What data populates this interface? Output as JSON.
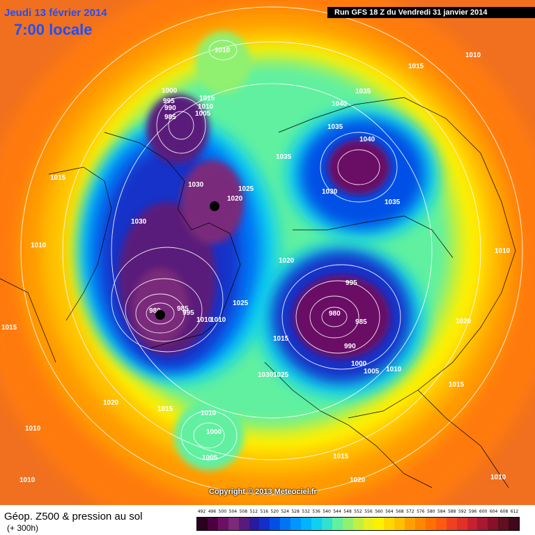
{
  "header": {
    "date": "Jeudi 13 février 2014",
    "time": "7:00 locale",
    "run": "Run GFS 18 Z du Vendredi 31 janvier 2014"
  },
  "copyright": "Copyright © 2013 Meteociel.fr",
  "legend": {
    "title": "Géop. Z500 & pression au sol",
    "subtitle": "(+ 300h)",
    "scale": [
      "492",
      "496",
      "500",
      "504",
      "508",
      "512",
      "516",
      "520",
      "524",
      "528",
      "532",
      "536",
      "540",
      "544",
      "548",
      "552",
      "556",
      "560",
      "564",
      "568",
      "572",
      "576",
      "580",
      "584",
      "588",
      "592",
      "596",
      "600",
      "604",
      "608",
      "612"
    ],
    "colors": [
      "#2a0020",
      "#4b0040",
      "#6b1065",
      "#7a2a7a",
      "#5a1a7a",
      "#2a1aa0",
      "#1230c8",
      "#0050e6",
      "#0074f5",
      "#0096ff",
      "#00b4ff",
      "#10d0f0",
      "#30e0d0",
      "#60f0a0",
      "#90f070",
      "#c0f040",
      "#e8f020",
      "#fff000",
      "#ffd800",
      "#ffc000",
      "#ffa000",
      "#ff8800",
      "#ff7000",
      "#ff5a10",
      "#f04020",
      "#e03028",
      "#c82030",
      "#a81830",
      "#881028",
      "#601020",
      "#400818"
    ]
  },
  "isobars": [
    "1010",
    "1015",
    "1000",
    "995",
    "990",
    "985",
    "1015",
    "1010",
    "1005",
    "1015",
    "1030",
    "1025",
    "1020",
    "1030",
    "1010",
    "980",
    "985",
    "995",
    "1010",
    "1010",
    "1025",
    "1030",
    "1025",
    "1015",
    "1020",
    "1010",
    "1000",
    "1005",
    "1010",
    "1010",
    "1035",
    "1040",
    "1035",
    "1040",
    "1035",
    "1030",
    "1035",
    "1020",
    "995",
    "980",
    "985",
    "990",
    "1000",
    "1005",
    "1010",
    "1010",
    "1015",
    "1020",
    "1015",
    "1015",
    "1020",
    "1010",
    "1010",
    "1015"
  ]
}
